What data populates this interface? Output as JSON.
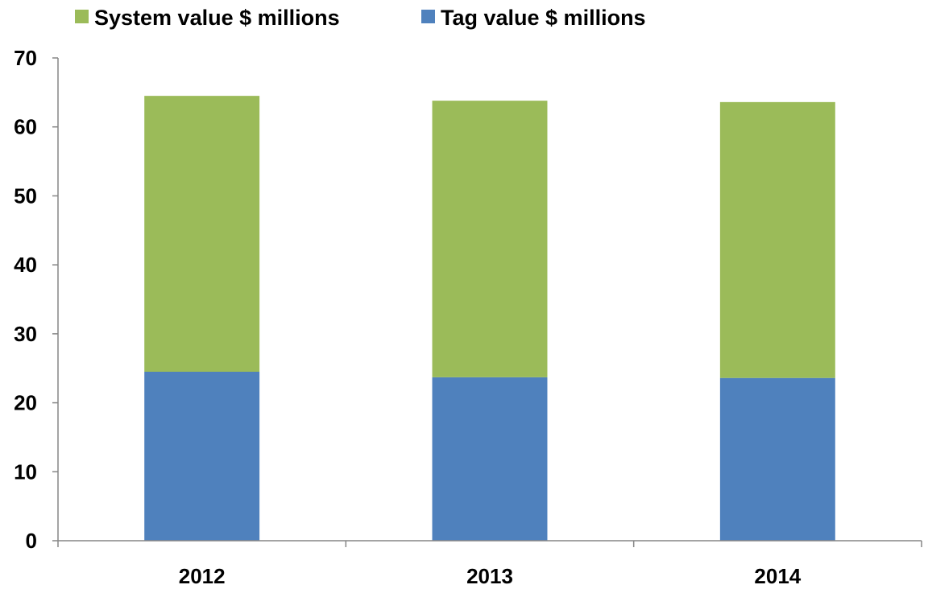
{
  "chart_data": {
    "type": "bar",
    "stacked": true,
    "categories": [
      "2012",
      "2013",
      "2014"
    ],
    "series": [
      {
        "name": "Tag value $ millions",
        "values": [
          24.5,
          23.7,
          23.6
        ],
        "color": "#4F81BD"
      },
      {
        "name": "System value $ millions",
        "values": [
          40.0,
          40.1,
          40.0
        ],
        "color": "#9BBB59"
      }
    ],
    "ylim": [
      0,
      70
    ],
    "yticks": [
      0,
      10,
      20,
      30,
      40,
      50,
      60,
      70
    ],
    "legend_order": [
      "System value $ millions",
      "Tag value $ millions"
    ],
    "legend_position": "top",
    "grid": false,
    "title": "",
    "xlabel": "",
    "ylabel": ""
  }
}
